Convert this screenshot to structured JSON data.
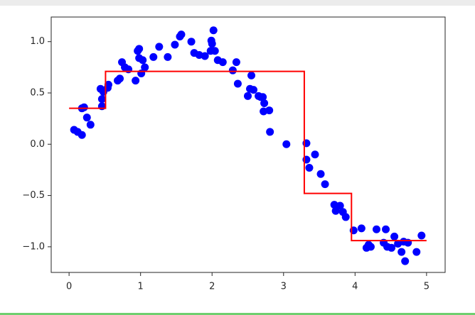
{
  "chart_data": {
    "type": "scatter",
    "xlim": [
      -0.25,
      5.26
    ],
    "ylim": [
      -1.25,
      1.24
    ],
    "xticks": [
      0,
      1,
      2,
      3,
      4,
      5
    ],
    "yticks": [
      {
        "value": 1.0,
        "label": "1.0"
      },
      {
        "value": 0.5,
        "label": "0.5"
      },
      {
        "value": 0.0,
        "label": "0.0"
      },
      {
        "value": -0.5,
        "label": "−0.5"
      },
      {
        "value": -1.0,
        "label": "−1.0"
      }
    ],
    "grid": false,
    "scatter": {
      "color": "#0000ff",
      "x": [
        0.07,
        0.12,
        0.18,
        0.18,
        0.21,
        0.25,
        0.3,
        0.44,
        0.46,
        0.46,
        0.48,
        0.54,
        0.55,
        0.68,
        0.71,
        0.74,
        0.78,
        0.83,
        0.93,
        0.96,
        0.98,
        0.98,
        1.01,
        1.03,
        1.06,
        1.18,
        1.26,
        1.38,
        1.48,
        1.55,
        1.57,
        1.71,
        1.75,
        1.82,
        1.9,
        1.98,
        1.99,
        2.0,
        2.02,
        2.04,
        2.08,
        2.15,
        2.29,
        2.34,
        2.36,
        2.5,
        2.53,
        2.55,
        2.58,
        2.65,
        2.68,
        2.71,
        2.73,
        2.72,
        2.8,
        2.81,
        3.04,
        3.32,
        3.32,
        3.36,
        3.44,
        3.52,
        3.58,
        3.71,
        3.73,
        3.79,
        3.83,
        3.87,
        3.98,
        4.09,
        4.16,
        4.19,
        4.22,
        4.3,
        4.43,
        4.4,
        4.45,
        4.51,
        4.55,
        4.6,
        4.65,
        4.68,
        4.7,
        4.74,
        4.86,
        4.93
      ],
      "y": [
        0.14,
        0.12,
        0.09,
        0.35,
        0.36,
        0.26,
        0.19,
        0.54,
        0.44,
        0.37,
        0.51,
        0.55,
        0.58,
        0.62,
        0.64,
        0.8,
        0.75,
        0.73,
        0.62,
        0.91,
        0.93,
        0.84,
        0.69,
        0.82,
        0.75,
        0.85,
        0.95,
        0.85,
        0.97,
        1.05,
        1.07,
        1.0,
        0.89,
        0.87,
        0.86,
        0.91,
        1.01,
        0.98,
        1.11,
        0.91,
        0.82,
        0.8,
        0.72,
        0.8,
        0.59,
        0.47,
        0.54,
        0.67,
        0.53,
        0.47,
        0.46,
        0.46,
        0.4,
        0.32,
        0.33,
        0.12,
        0.0,
        0.01,
        -0.15,
        -0.23,
        -0.1,
        -0.29,
        -0.39,
        -0.59,
        -0.65,
        -0.6,
        -0.66,
        -0.71,
        -0.84,
        -0.82,
        -1.01,
        -0.98,
        -1.0,
        -0.83,
        -0.83,
        -0.96,
        -1.0,
        -1.01,
        -0.9,
        -0.97,
        -1.05,
        -0.95,
        -1.14,
        -0.96,
        -1.05,
        -0.89
      ]
    },
    "line": {
      "color": "#ff0000",
      "x": [
        0,
        0.51,
        0.51,
        3.29,
        3.29,
        3.95,
        3.95,
        5.0
      ],
      "y": [
        0.35,
        0.35,
        0.71,
        0.71,
        -0.48,
        -0.48,
        -0.94,
        -0.94
      ]
    }
  }
}
